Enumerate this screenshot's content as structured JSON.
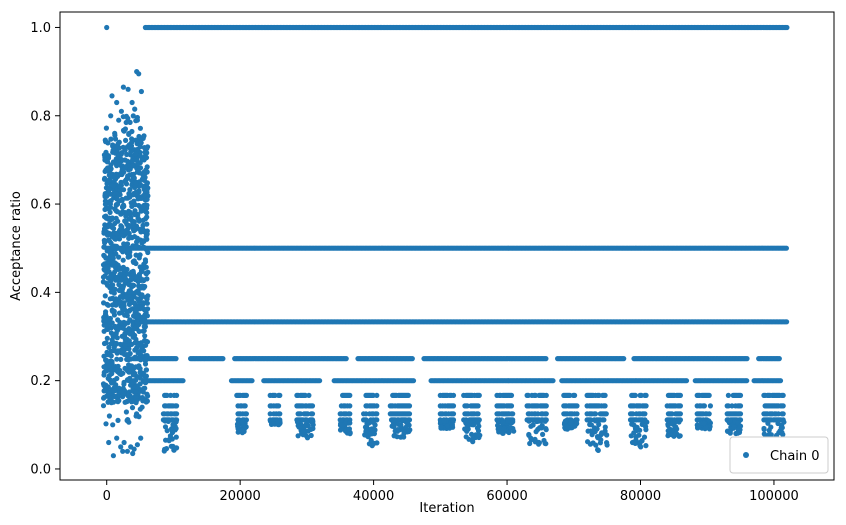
{
  "chart_data": {
    "type": "scatter",
    "title": "",
    "xlabel": "Iteration",
    "ylabel": "Acceptance ratio",
    "xlim": [
      -7000,
      109000
    ],
    "ylim": [
      -0.025,
      1.035
    ],
    "x_ticks": [
      0,
      20000,
      40000,
      60000,
      80000,
      100000
    ],
    "y_ticks": [
      0.0,
      0.2,
      0.4,
      0.6,
      0.8,
      1.0
    ],
    "x_tick_labels": [
      "0",
      "20000",
      "40000",
      "60000",
      "80000",
      "100000"
    ],
    "y_tick_labels": [
      "0.0",
      "0.2",
      "0.4",
      "0.6",
      "0.8",
      "1.0"
    ],
    "grid": false,
    "legend": {
      "placement": "lower-right",
      "entries": [
        "Chain 0"
      ]
    },
    "series": [
      {
        "name": "Chain 0",
        "color": "#1f77b4",
        "marker": "circle",
        "points": [
          [
            0,
            1.0
          ],
          [
            4500,
            0.9
          ],
          [
            4800,
            0.895
          ],
          [
            2500,
            0.865
          ],
          [
            3200,
            0.86
          ],
          [
            800,
            0.845
          ],
          [
            5200,
            0.855
          ],
          [
            1500,
            0.83
          ],
          [
            3800,
            0.83
          ],
          [
            2200,
            0.81
          ],
          [
            4200,
            0.815
          ],
          [
            600,
            0.8
          ],
          [
            1800,
            0.79
          ],
          [
            3500,
            0.785
          ],
          [
            4600,
            0.79
          ],
          [
            1200,
            0.76
          ],
          [
            2800,
            0.77
          ],
          [
            5000,
            0.75
          ],
          [
            400,
            0.12
          ],
          [
            900,
            0.1
          ],
          [
            1500,
            0.07
          ],
          [
            2100,
            0.05
          ],
          [
            2600,
            0.06
          ],
          [
            3100,
            0.04
          ],
          [
            3600,
            0.05
          ],
          [
            4100,
            0.045
          ],
          [
            4600,
            0.055
          ],
          [
            5100,
            0.07
          ],
          [
            1000,
            0.03
          ],
          [
            300,
            0.06
          ],
          [
            2400,
            0.04
          ],
          [
            3900,
            0.035
          ],
          [
            700,
            0.15
          ],
          [
            5300,
            0.14
          ],
          [
            1700,
            0.11
          ],
          [
            4400,
            0.12
          ]
        ],
        "bands": [
          {
            "y": 1.0,
            "x_start": 5800,
            "x_end": 102000
          },
          {
            "y": 0.5,
            "x_start": 0,
            "x_end": 102000
          },
          {
            "y": 0.3333,
            "x_start": 4000,
            "x_end": 102000
          },
          {
            "y": 0.25,
            "x_start": 4000,
            "x_end": 101000
          },
          {
            "y": 0.2,
            "x_start": 5500,
            "x_end": 101000
          }
        ],
        "dense_region": {
          "x_start": -500,
          "x_end": 6200,
          "y_start": 0.15,
          "y_end": 0.75
        },
        "sparse_clusters": [
          {
            "x_start": 8500,
            "x_end": 10500,
            "y_min": 0.04
          },
          {
            "x_start": 19500,
            "x_end": 21000,
            "y_min": 0.08
          },
          {
            "x_start": 24500,
            "x_end": 26000,
            "y_min": 0.1
          },
          {
            "x_start": 28500,
            "x_end": 31000,
            "y_min": 0.07
          },
          {
            "x_start": 35000,
            "x_end": 36500,
            "y_min": 0.08
          },
          {
            "x_start": 38500,
            "x_end": 40500,
            "y_min": 0.05
          },
          {
            "x_start": 42500,
            "x_end": 45500,
            "y_min": 0.07
          },
          {
            "x_start": 50000,
            "x_end": 52000,
            "y_min": 0.09
          },
          {
            "x_start": 53500,
            "x_end": 56000,
            "y_min": 0.06
          },
          {
            "x_start": 58500,
            "x_end": 61000,
            "y_min": 0.08
          },
          {
            "x_start": 63000,
            "x_end": 66000,
            "y_min": 0.05
          },
          {
            "x_start": 68500,
            "x_end": 70500,
            "y_min": 0.09
          },
          {
            "x_start": 72000,
            "x_end": 75000,
            "y_min": 0.04
          },
          {
            "x_start": 78500,
            "x_end": 81000,
            "y_min": 0.05
          },
          {
            "x_start": 84000,
            "x_end": 86000,
            "y_min": 0.07
          },
          {
            "x_start": 88500,
            "x_end": 90500,
            "y_min": 0.09
          },
          {
            "x_start": 93000,
            "x_end": 95000,
            "y_min": 0.08
          },
          {
            "x_start": 98500,
            "x_end": 101500,
            "y_min": 0.05
          }
        ],
        "band_gaps": [
          {
            "y": 0.25,
            "gaps": [
              [
                10500,
                12500
              ],
              [
                17500,
                19000
              ],
              [
                36000,
                37500
              ],
              [
                46000,
                47500
              ],
              [
                66000,
                67500
              ],
              [
                77500,
                79000
              ],
              [
                96000,
                97500
              ]
            ]
          },
          {
            "y": 0.2,
            "gaps": [
              [
                11500,
                18500
              ],
              [
                22000,
                23500
              ],
              [
                32000,
                34000
              ],
              [
                46000,
                48500
              ],
              [
                67000,
                68000
              ],
              [
                87000,
                88000
              ],
              [
                96000,
                97000
              ]
            ]
          }
        ]
      }
    ]
  }
}
